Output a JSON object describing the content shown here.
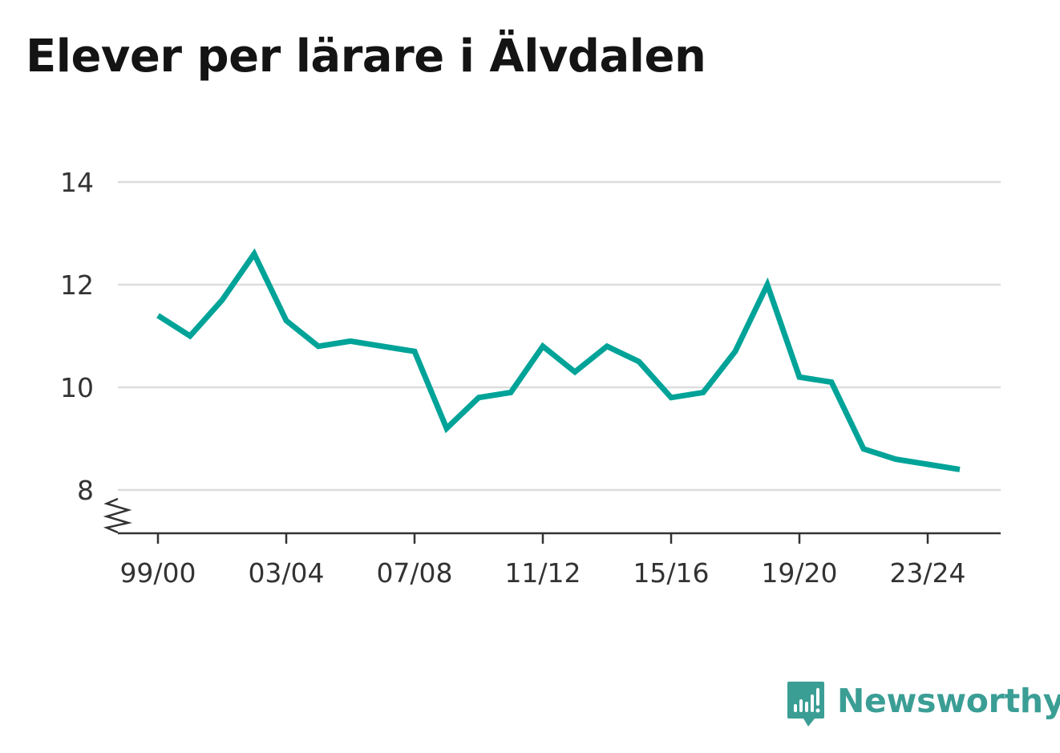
{
  "chart_data": {
    "type": "line",
    "title": "Elever per lärare i Älvdalen",
    "xlabel": "",
    "ylabel": "",
    "x": [
      "99/00",
      "00/01",
      "01/02",
      "02/03",
      "03/04",
      "04/05",
      "05/06",
      "06/07",
      "07/08",
      "08/09",
      "09/10",
      "10/11",
      "11/12",
      "12/13",
      "13/14",
      "14/15",
      "15/16",
      "16/17",
      "17/18",
      "18/19",
      "19/20",
      "20/21",
      "21/22",
      "22/23",
      "23/24",
      "24/25"
    ],
    "x_tick_labels": [
      "99/00",
      "03/04",
      "07/08",
      "11/12",
      "15/16",
      "19/20",
      "23/24"
    ],
    "series": [
      {
        "values": [
          11.4,
          11.0,
          11.7,
          12.6,
          11.3,
          10.8,
          10.9,
          10.8,
          10.7,
          9.2,
          9.8,
          9.9,
          10.8,
          10.3,
          10.8,
          10.5,
          9.8,
          9.9,
          10.7,
          12.0,
          10.2,
          10.1,
          8.8,
          8.6,
          8.5,
          8.4
        ],
        "color": "#00a398"
      }
    ],
    "y_ticks": [
      8,
      10,
      12,
      14
    ],
    "y_tick_labels": [
      "8",
      "10",
      "12",
      "14"
    ],
    "ylim": [
      8,
      14
    ],
    "y_axis_break": true,
    "grid": true,
    "legend": "none"
  },
  "branding": {
    "name": "Newsworthy",
    "color": "#3b9e95",
    "icon": "newsworthy-logo-icon"
  },
  "colors": {
    "line": "#00a398",
    "grid": "#dddddd",
    "axis": "#333333",
    "text": "#141414"
  }
}
